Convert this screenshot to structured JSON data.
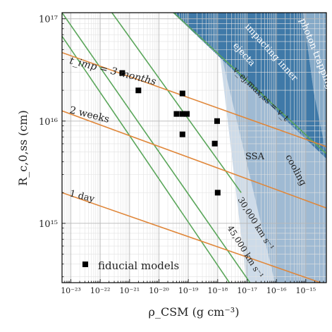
{
  "chart_data": {
    "type": "scatter",
    "xlabel": "ρ_CSM   (g cm⁻³)",
    "ylabel": "R_c,0,ss   (cm)",
    "xscale": "log",
    "yscale": "log",
    "xlim_log10": [
      -23.3,
      -14.3
    ],
    "ylim_log10": [
      14.42,
      17.06
    ],
    "grid": true,
    "x_ticks": [
      {
        "v": -23,
        "label": "10⁻²³"
      },
      {
        "v": -22,
        "label": "10⁻²²"
      },
      {
        "v": -21,
        "label": "10⁻²¹"
      },
      {
        "v": -20,
        "label": "10⁻²⁰"
      },
      {
        "v": -19,
        "label": "10⁻¹⁹"
      },
      {
        "v": -18,
        "label": "10⁻¹⁸"
      },
      {
        "v": -17,
        "label": "10⁻¹⁷"
      },
      {
        "v": -16,
        "label": "10⁻¹⁶"
      },
      {
        "v": -15,
        "label": "10⁻¹⁵"
      }
    ],
    "y_ticks": [
      {
        "v": 15,
        "label": "10¹⁵"
      },
      {
        "v": 16,
        "label": "10¹⁶"
      },
      {
        "v": 17,
        "label": "10¹⁷"
      }
    ],
    "series": [
      {
        "name": "fiducial models",
        "marker": "square",
        "color": "#000000",
        "points_log10": [
          [
            -21.25,
            16.47
          ],
          [
            -20.7,
            16.3
          ],
          [
            -19.2,
            16.27
          ],
          [
            -19.4,
            16.07
          ],
          [
            -19.2,
            16.07
          ],
          [
            -19.05,
            16.07
          ],
          [
            -19.2,
            15.87
          ],
          [
            -18.1,
            15.78
          ],
          [
            -18.02,
            16.0
          ],
          [
            -18.0,
            15.3
          ]
        ]
      }
    ],
    "orange_lines_log10": [
      {
        "label": "t_imp = 3 months",
        "p1": [
          -23.3,
          16.67
        ],
        "p2": [
          -14.3,
          15.75
        ]
      },
      {
        "label": "2 weeks",
        "p1": [
          -23.3,
          16.1
        ],
        "p2": [
          -14.3,
          15.15
        ]
      },
      {
        "label": "1 day",
        "p1": [
          -23.3,
          15.3
        ],
        "p2": [
          -14.3,
          14.4
        ]
      }
    ],
    "green_lines_log10": [
      {
        "label": "v_ej,max,ss = v_t",
        "p1": [
          -19.5,
          17.06
        ],
        "p2": [
          -14.3,
          15.68
        ]
      },
      {
        "label": "30,000 km s⁻¹",
        "p1": [
          -23.3,
          17.06
        ],
        "p2": [
          -16.9,
          14.42
        ]
      },
      {
        "label": "45,000 km s⁻¹",
        "p1": [
          -23.3,
          16.83
        ],
        "p2": [
          -17.6,
          14.42
        ]
      },
      {
        "label": "",
        "p1": [
          -21.6,
          17.06
        ],
        "p2": [
          -17.2,
          15.3
        ]
      }
    ],
    "regions": [
      {
        "label": "impacting inner ejecta",
        "color": "#3f79a8"
      },
      {
        "label": "photon trapping",
        "color": "#86aac8"
      },
      {
        "label": "cooling",
        "color": "#9fbad3"
      },
      {
        "label": "SSA",
        "color": "#cddbe9"
      }
    ],
    "annotations": {
      "t3m": "t_imp = 3 months",
      "w2": "2 weeks",
      "d1": "1 day",
      "vt": "v_ej,max,ss = v_t",
      "v30": "30,000 km s⁻¹",
      "v45": "45,000 km s⁻¹",
      "impact1": "impacting inner",
      "impact2": "ejecta",
      "photon": "photon trapping",
      "ssa": "SSA",
      "cooling": "cooling"
    },
    "legend": {
      "label": "fiducial models",
      "placement": "lower-left"
    }
  }
}
